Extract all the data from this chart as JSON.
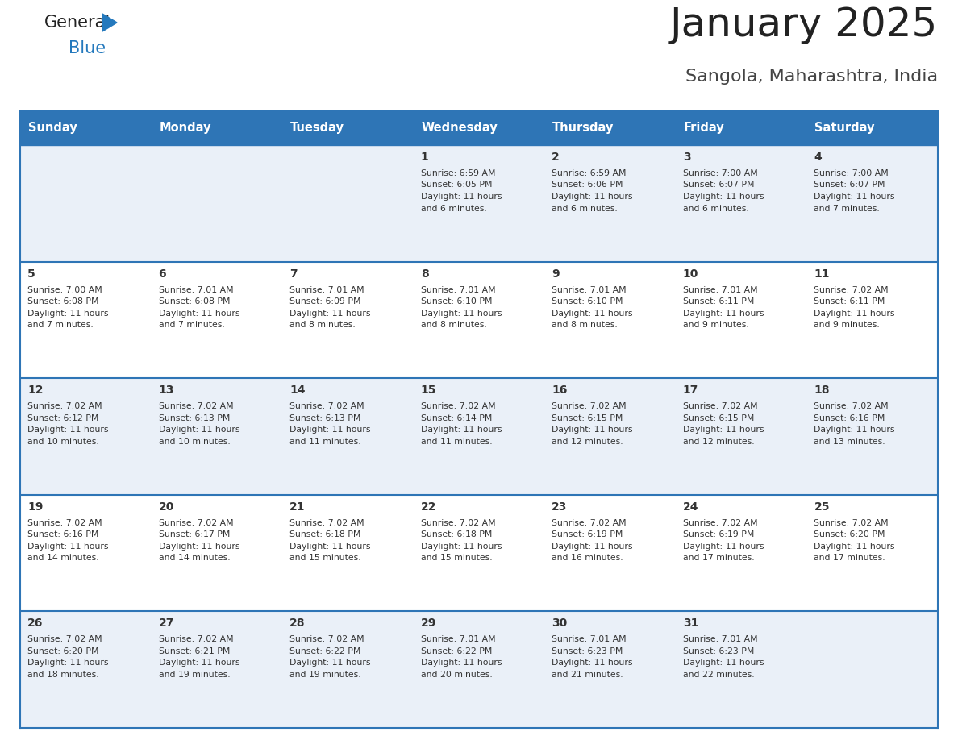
{
  "title": "January 2025",
  "subtitle": "Sangola, Maharashtra, India",
  "header_bg_color": "#2E75B6",
  "header_text_color": "#FFFFFF",
  "day_names": [
    "Sunday",
    "Monday",
    "Tuesday",
    "Wednesday",
    "Thursday",
    "Friday",
    "Saturday"
  ],
  "row_bg_even": "#FFFFFF",
  "row_bg_odd": "#EAF0F8",
  "cell_text_color": "#333333",
  "day_num_color": "#333333",
  "border_color": "#2E75B6",
  "title_color": "#222222",
  "subtitle_color": "#444444",
  "logo_general_color": "#222222",
  "logo_blue_color": "#2479BD",
  "days_data": [
    {
      "day": 1,
      "col": 3,
      "row": 0,
      "sunrise": "6:59 AM",
      "sunset": "6:05 PM",
      "daylight": "11 hours and 6 minutes."
    },
    {
      "day": 2,
      "col": 4,
      "row": 0,
      "sunrise": "6:59 AM",
      "sunset": "6:06 PM",
      "daylight": "11 hours and 6 minutes."
    },
    {
      "day": 3,
      "col": 5,
      "row": 0,
      "sunrise": "7:00 AM",
      "sunset": "6:07 PM",
      "daylight": "11 hours and 6 minutes."
    },
    {
      "day": 4,
      "col": 6,
      "row": 0,
      "sunrise": "7:00 AM",
      "sunset": "6:07 PM",
      "daylight": "11 hours and 7 minutes."
    },
    {
      "day": 5,
      "col": 0,
      "row": 1,
      "sunrise": "7:00 AM",
      "sunset": "6:08 PM",
      "daylight": "11 hours and 7 minutes."
    },
    {
      "day": 6,
      "col": 1,
      "row": 1,
      "sunrise": "7:01 AM",
      "sunset": "6:08 PM",
      "daylight": "11 hours and 7 minutes."
    },
    {
      "day": 7,
      "col": 2,
      "row": 1,
      "sunrise": "7:01 AM",
      "sunset": "6:09 PM",
      "daylight": "11 hours and 8 minutes."
    },
    {
      "day": 8,
      "col": 3,
      "row": 1,
      "sunrise": "7:01 AM",
      "sunset": "6:10 PM",
      "daylight": "11 hours and 8 minutes."
    },
    {
      "day": 9,
      "col": 4,
      "row": 1,
      "sunrise": "7:01 AM",
      "sunset": "6:10 PM",
      "daylight": "11 hours and 8 minutes."
    },
    {
      "day": 10,
      "col": 5,
      "row": 1,
      "sunrise": "7:01 AM",
      "sunset": "6:11 PM",
      "daylight": "11 hours and 9 minutes."
    },
    {
      "day": 11,
      "col": 6,
      "row": 1,
      "sunrise": "7:02 AM",
      "sunset": "6:11 PM",
      "daylight": "11 hours and 9 minutes."
    },
    {
      "day": 12,
      "col": 0,
      "row": 2,
      "sunrise": "7:02 AM",
      "sunset": "6:12 PM",
      "daylight": "11 hours and 10 minutes."
    },
    {
      "day": 13,
      "col": 1,
      "row": 2,
      "sunrise": "7:02 AM",
      "sunset": "6:13 PM",
      "daylight": "11 hours and 10 minutes."
    },
    {
      "day": 14,
      "col": 2,
      "row": 2,
      "sunrise": "7:02 AM",
      "sunset": "6:13 PM",
      "daylight": "11 hours and 11 minutes."
    },
    {
      "day": 15,
      "col": 3,
      "row": 2,
      "sunrise": "7:02 AM",
      "sunset": "6:14 PM",
      "daylight": "11 hours and 11 minutes."
    },
    {
      "day": 16,
      "col": 4,
      "row": 2,
      "sunrise": "7:02 AM",
      "sunset": "6:15 PM",
      "daylight": "11 hours and 12 minutes."
    },
    {
      "day": 17,
      "col": 5,
      "row": 2,
      "sunrise": "7:02 AM",
      "sunset": "6:15 PM",
      "daylight": "11 hours and 12 minutes."
    },
    {
      "day": 18,
      "col": 6,
      "row": 2,
      "sunrise": "7:02 AM",
      "sunset": "6:16 PM",
      "daylight": "11 hours and 13 minutes."
    },
    {
      "day": 19,
      "col": 0,
      "row": 3,
      "sunrise": "7:02 AM",
      "sunset": "6:16 PM",
      "daylight": "11 hours and 14 minutes."
    },
    {
      "day": 20,
      "col": 1,
      "row": 3,
      "sunrise": "7:02 AM",
      "sunset": "6:17 PM",
      "daylight": "11 hours and 14 minutes."
    },
    {
      "day": 21,
      "col": 2,
      "row": 3,
      "sunrise": "7:02 AM",
      "sunset": "6:18 PM",
      "daylight": "11 hours and 15 minutes."
    },
    {
      "day": 22,
      "col": 3,
      "row": 3,
      "sunrise": "7:02 AM",
      "sunset": "6:18 PM",
      "daylight": "11 hours and 15 minutes."
    },
    {
      "day": 23,
      "col": 4,
      "row": 3,
      "sunrise": "7:02 AM",
      "sunset": "6:19 PM",
      "daylight": "11 hours and 16 minutes."
    },
    {
      "day": 24,
      "col": 5,
      "row": 3,
      "sunrise": "7:02 AM",
      "sunset": "6:19 PM",
      "daylight": "11 hours and 17 minutes."
    },
    {
      "day": 25,
      "col": 6,
      "row": 3,
      "sunrise": "7:02 AM",
      "sunset": "6:20 PM",
      "daylight": "11 hours and 17 minutes."
    },
    {
      "day": 26,
      "col": 0,
      "row": 4,
      "sunrise": "7:02 AM",
      "sunset": "6:20 PM",
      "daylight": "11 hours and 18 minutes."
    },
    {
      "day": 27,
      "col": 1,
      "row": 4,
      "sunrise": "7:02 AM",
      "sunset": "6:21 PM",
      "daylight": "11 hours and 19 minutes."
    },
    {
      "day": 28,
      "col": 2,
      "row": 4,
      "sunrise": "7:02 AM",
      "sunset": "6:22 PM",
      "daylight": "11 hours and 19 minutes."
    },
    {
      "day": 29,
      "col": 3,
      "row": 4,
      "sunrise": "7:01 AM",
      "sunset": "6:22 PM",
      "daylight": "11 hours and 20 minutes."
    },
    {
      "day": 30,
      "col": 4,
      "row": 4,
      "sunrise": "7:01 AM",
      "sunset": "6:23 PM",
      "daylight": "11 hours and 21 minutes."
    },
    {
      "day": 31,
      "col": 5,
      "row": 4,
      "sunrise": "7:01 AM",
      "sunset": "6:23 PM",
      "daylight": "11 hours and 22 minutes."
    }
  ]
}
